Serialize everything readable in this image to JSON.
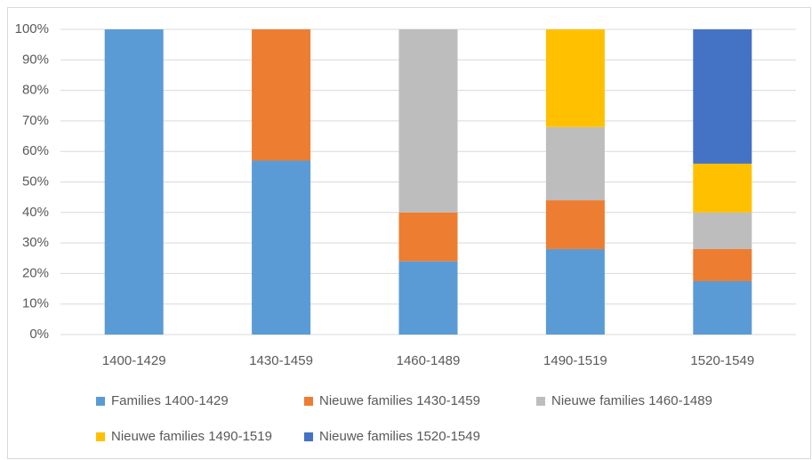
{
  "chart_data": {
    "type": "stacked_bar",
    "categories": [
      "1400-1429",
      "1430-1459",
      "1460-1489",
      "1490-1519",
      "1520-1549"
    ],
    "series": [
      {
        "name": "Families 1400-1429",
        "color": "#5b9bd5",
        "values": [
          100,
          57,
          24,
          28,
          17.5
        ]
      },
      {
        "name": "Nieuwe families 1430-1459",
        "color": "#ed7d31",
        "values": [
          0,
          43,
          16,
          16,
          10.5
        ]
      },
      {
        "name": "Nieuwe families 1460-1489",
        "color": "#bdbdbd",
        "values": [
          0,
          0,
          60,
          24,
          12
        ]
      },
      {
        "name": "Nieuwe families 1490-1519",
        "color": "#ffc000",
        "values": [
          0,
          0,
          0,
          32,
          16
        ]
      },
      {
        "name": "Nieuwe families 1520-1549",
        "color": "#4472c4",
        "values": [
          0,
          0,
          0,
          0,
          44
        ]
      }
    ],
    "ylim": [
      0,
      100
    ],
    "yticks": [
      {
        "value": 0,
        "label": "0%"
      },
      {
        "value": 10,
        "label": "10%"
      },
      {
        "value": 20,
        "label": "20%"
      },
      {
        "value": 30,
        "label": "30%"
      },
      {
        "value": 40,
        "label": "40%"
      },
      {
        "value": 50,
        "label": "50%"
      },
      {
        "value": 60,
        "label": "60%"
      },
      {
        "value": 70,
        "label": "70%"
      },
      {
        "value": 80,
        "label": "80%"
      },
      {
        "value": 90,
        "label": "90%"
      },
      {
        "value": 100,
        "label": "100%"
      }
    ],
    "grid": true,
    "legend": "bottom"
  }
}
